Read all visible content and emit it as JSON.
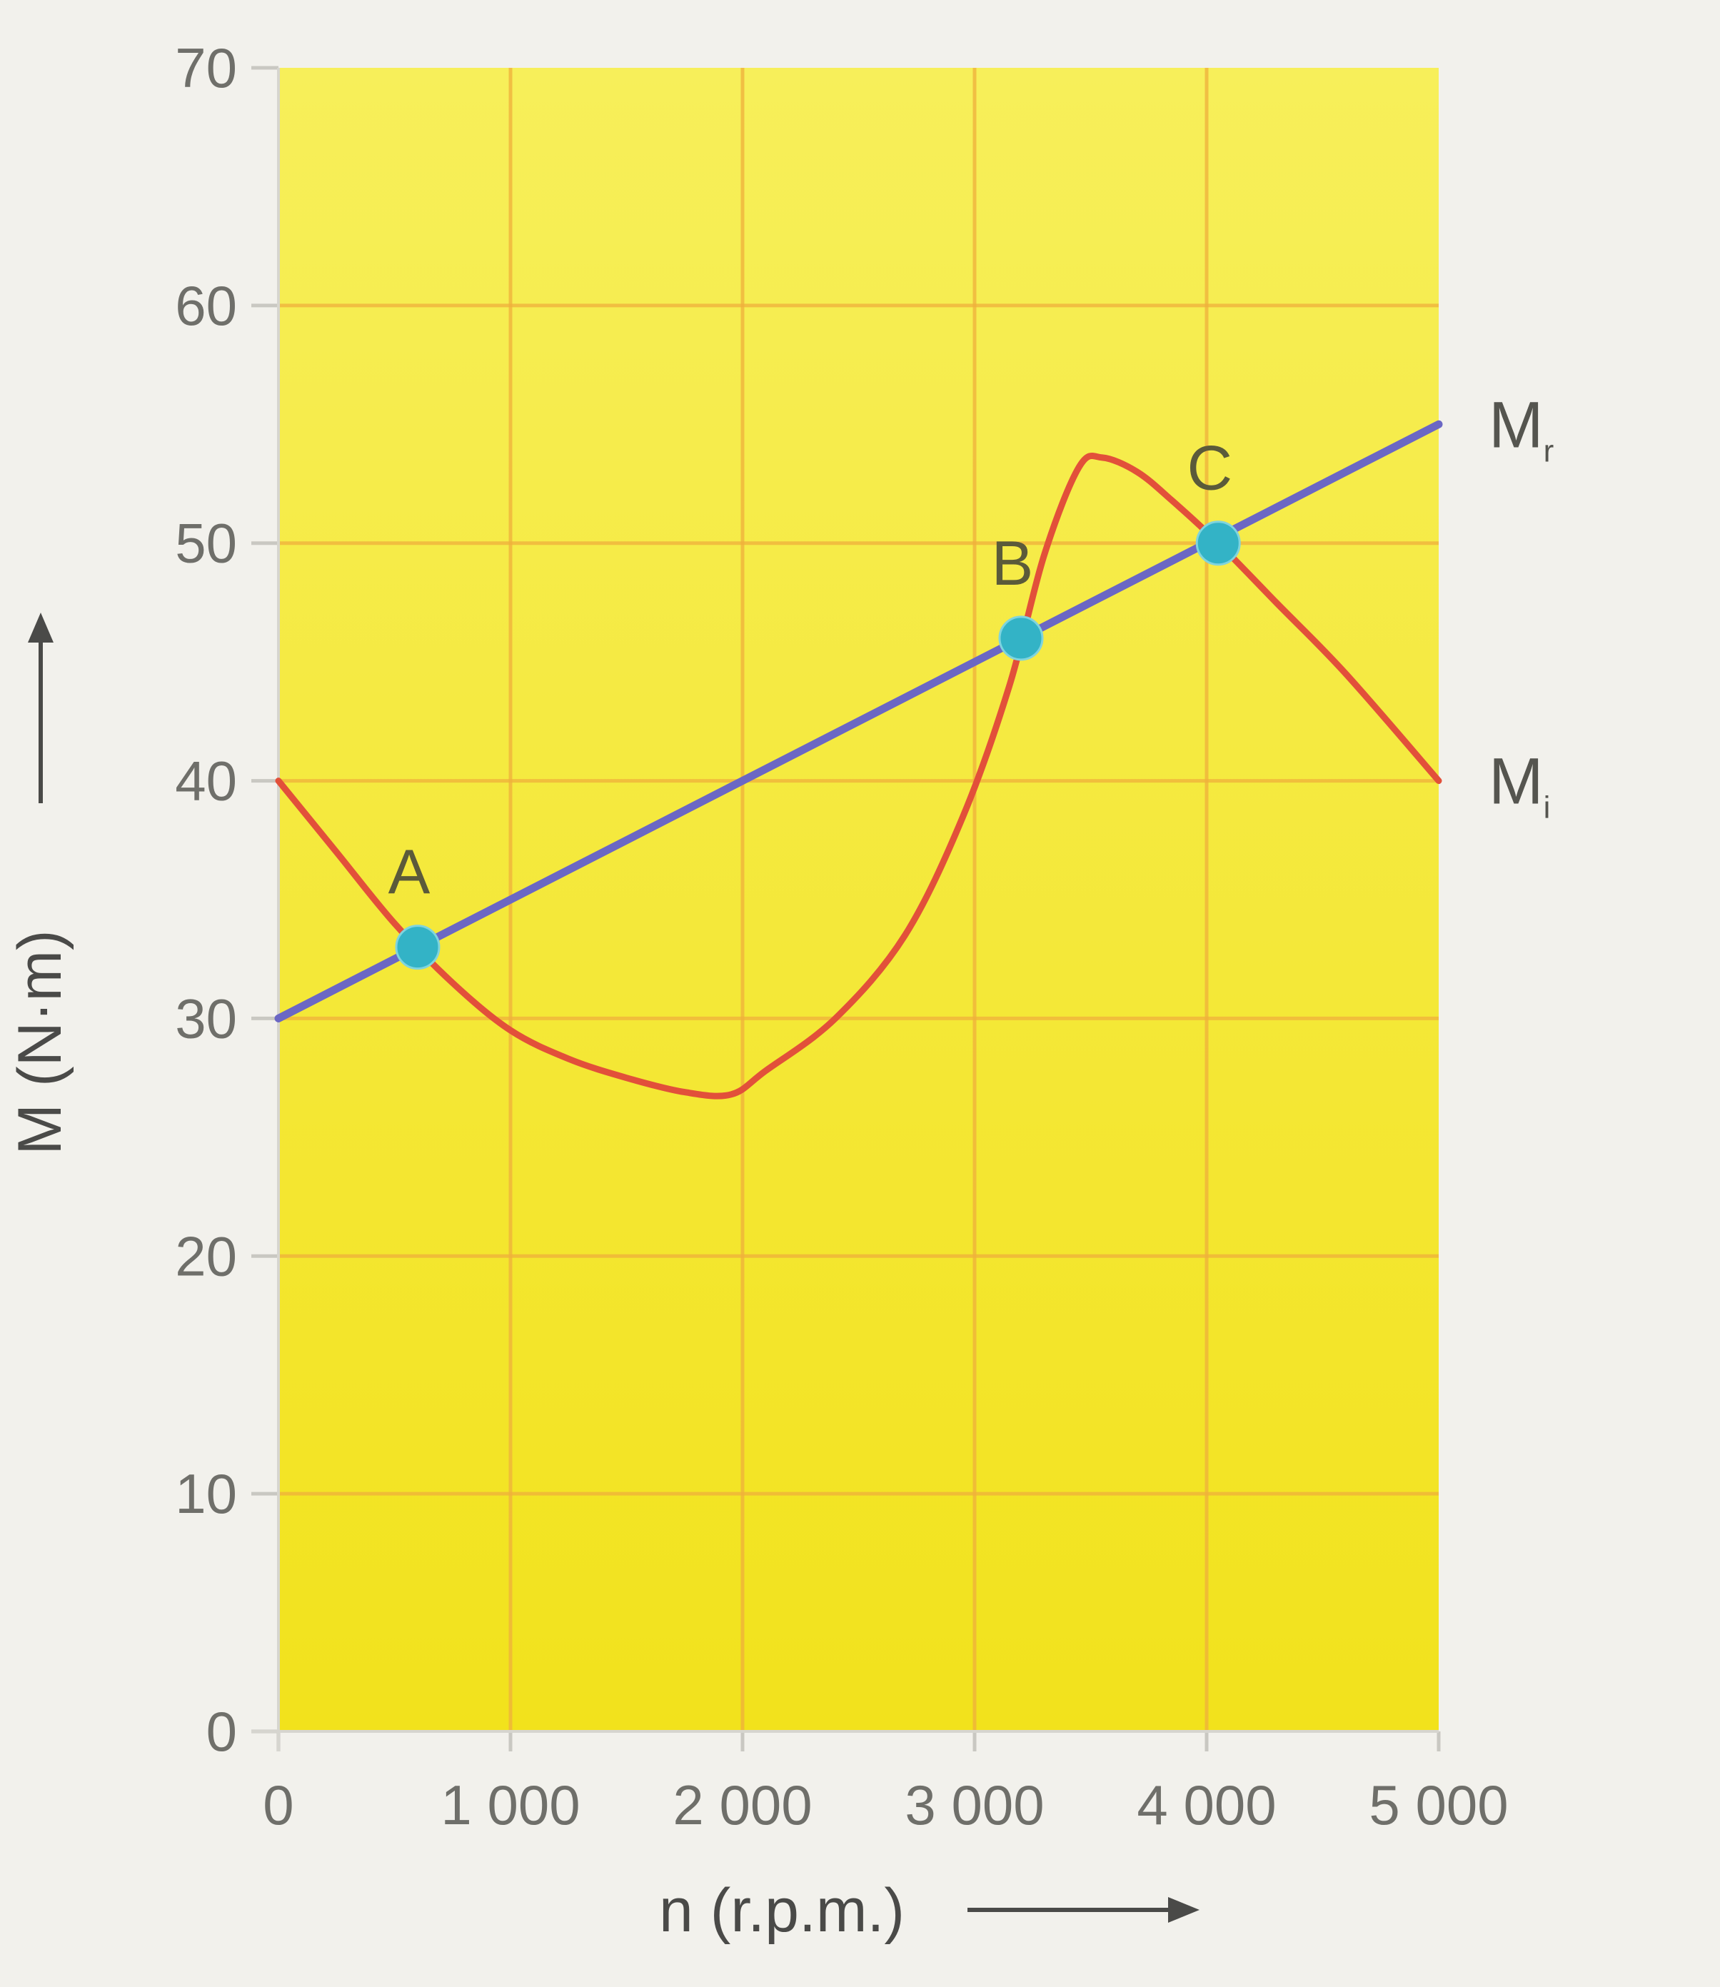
{
  "chart_data": {
    "type": "line",
    "xlabel": "n (r.p.m.)",
    "ylabel": "M (N·m)",
    "xlim": [
      0,
      5000
    ],
    "ylim": [
      0,
      70
    ],
    "x_ticks": [
      0,
      1000,
      2000,
      3000,
      4000,
      5000
    ],
    "x_tick_labels": [
      "0",
      "1 000",
      "2 000",
      "3 000",
      "4 000",
      "5 000"
    ],
    "y_ticks": [
      0,
      10,
      20,
      30,
      40,
      50,
      60,
      70
    ],
    "y_tick_labels": [
      "0",
      "10",
      "20",
      "30",
      "40",
      "50",
      "60",
      "70"
    ],
    "grid": true,
    "series": [
      {
        "name": "Mr",
        "label_main": "M",
        "label_sub": "r",
        "color": "#6b67c4",
        "x": [
          0,
          5000
        ],
        "y": [
          30,
          55
        ]
      },
      {
        "name": "Mi",
        "label_main": "M",
        "label_sub": "i",
        "color": "#e2503a",
        "x": [
          0,
          250,
          500,
          750,
          1000,
          1250,
          1500,
          1750,
          1950,
          2100,
          2400,
          2700,
          2950,
          3150,
          3300,
          3450,
          3550,
          3700,
          3850,
          4050,
          4300,
          4600,
          5000
        ],
        "y": [
          40,
          37,
          34,
          31.5,
          29.5,
          28.3,
          27.5,
          26.9,
          26.8,
          27.8,
          30,
          33.5,
          38.5,
          44,
          49.5,
          53.2,
          53.6,
          53,
          51.8,
          50,
          47.5,
          44.5,
          40
        ]
      }
    ],
    "points": [
      {
        "label": "A",
        "x": 600,
        "y": 33,
        "color": "#33b3c6"
      },
      {
        "label": "B",
        "x": 3200,
        "y": 46,
        "color": "#33b3c6"
      },
      {
        "label": "C",
        "x": 4050,
        "y": 50,
        "color": "#33b3c6"
      }
    ],
    "colors": {
      "plot_background": "#f6ea2c",
      "grid": "#f0b03c",
      "page": "#f2f1ec"
    }
  }
}
